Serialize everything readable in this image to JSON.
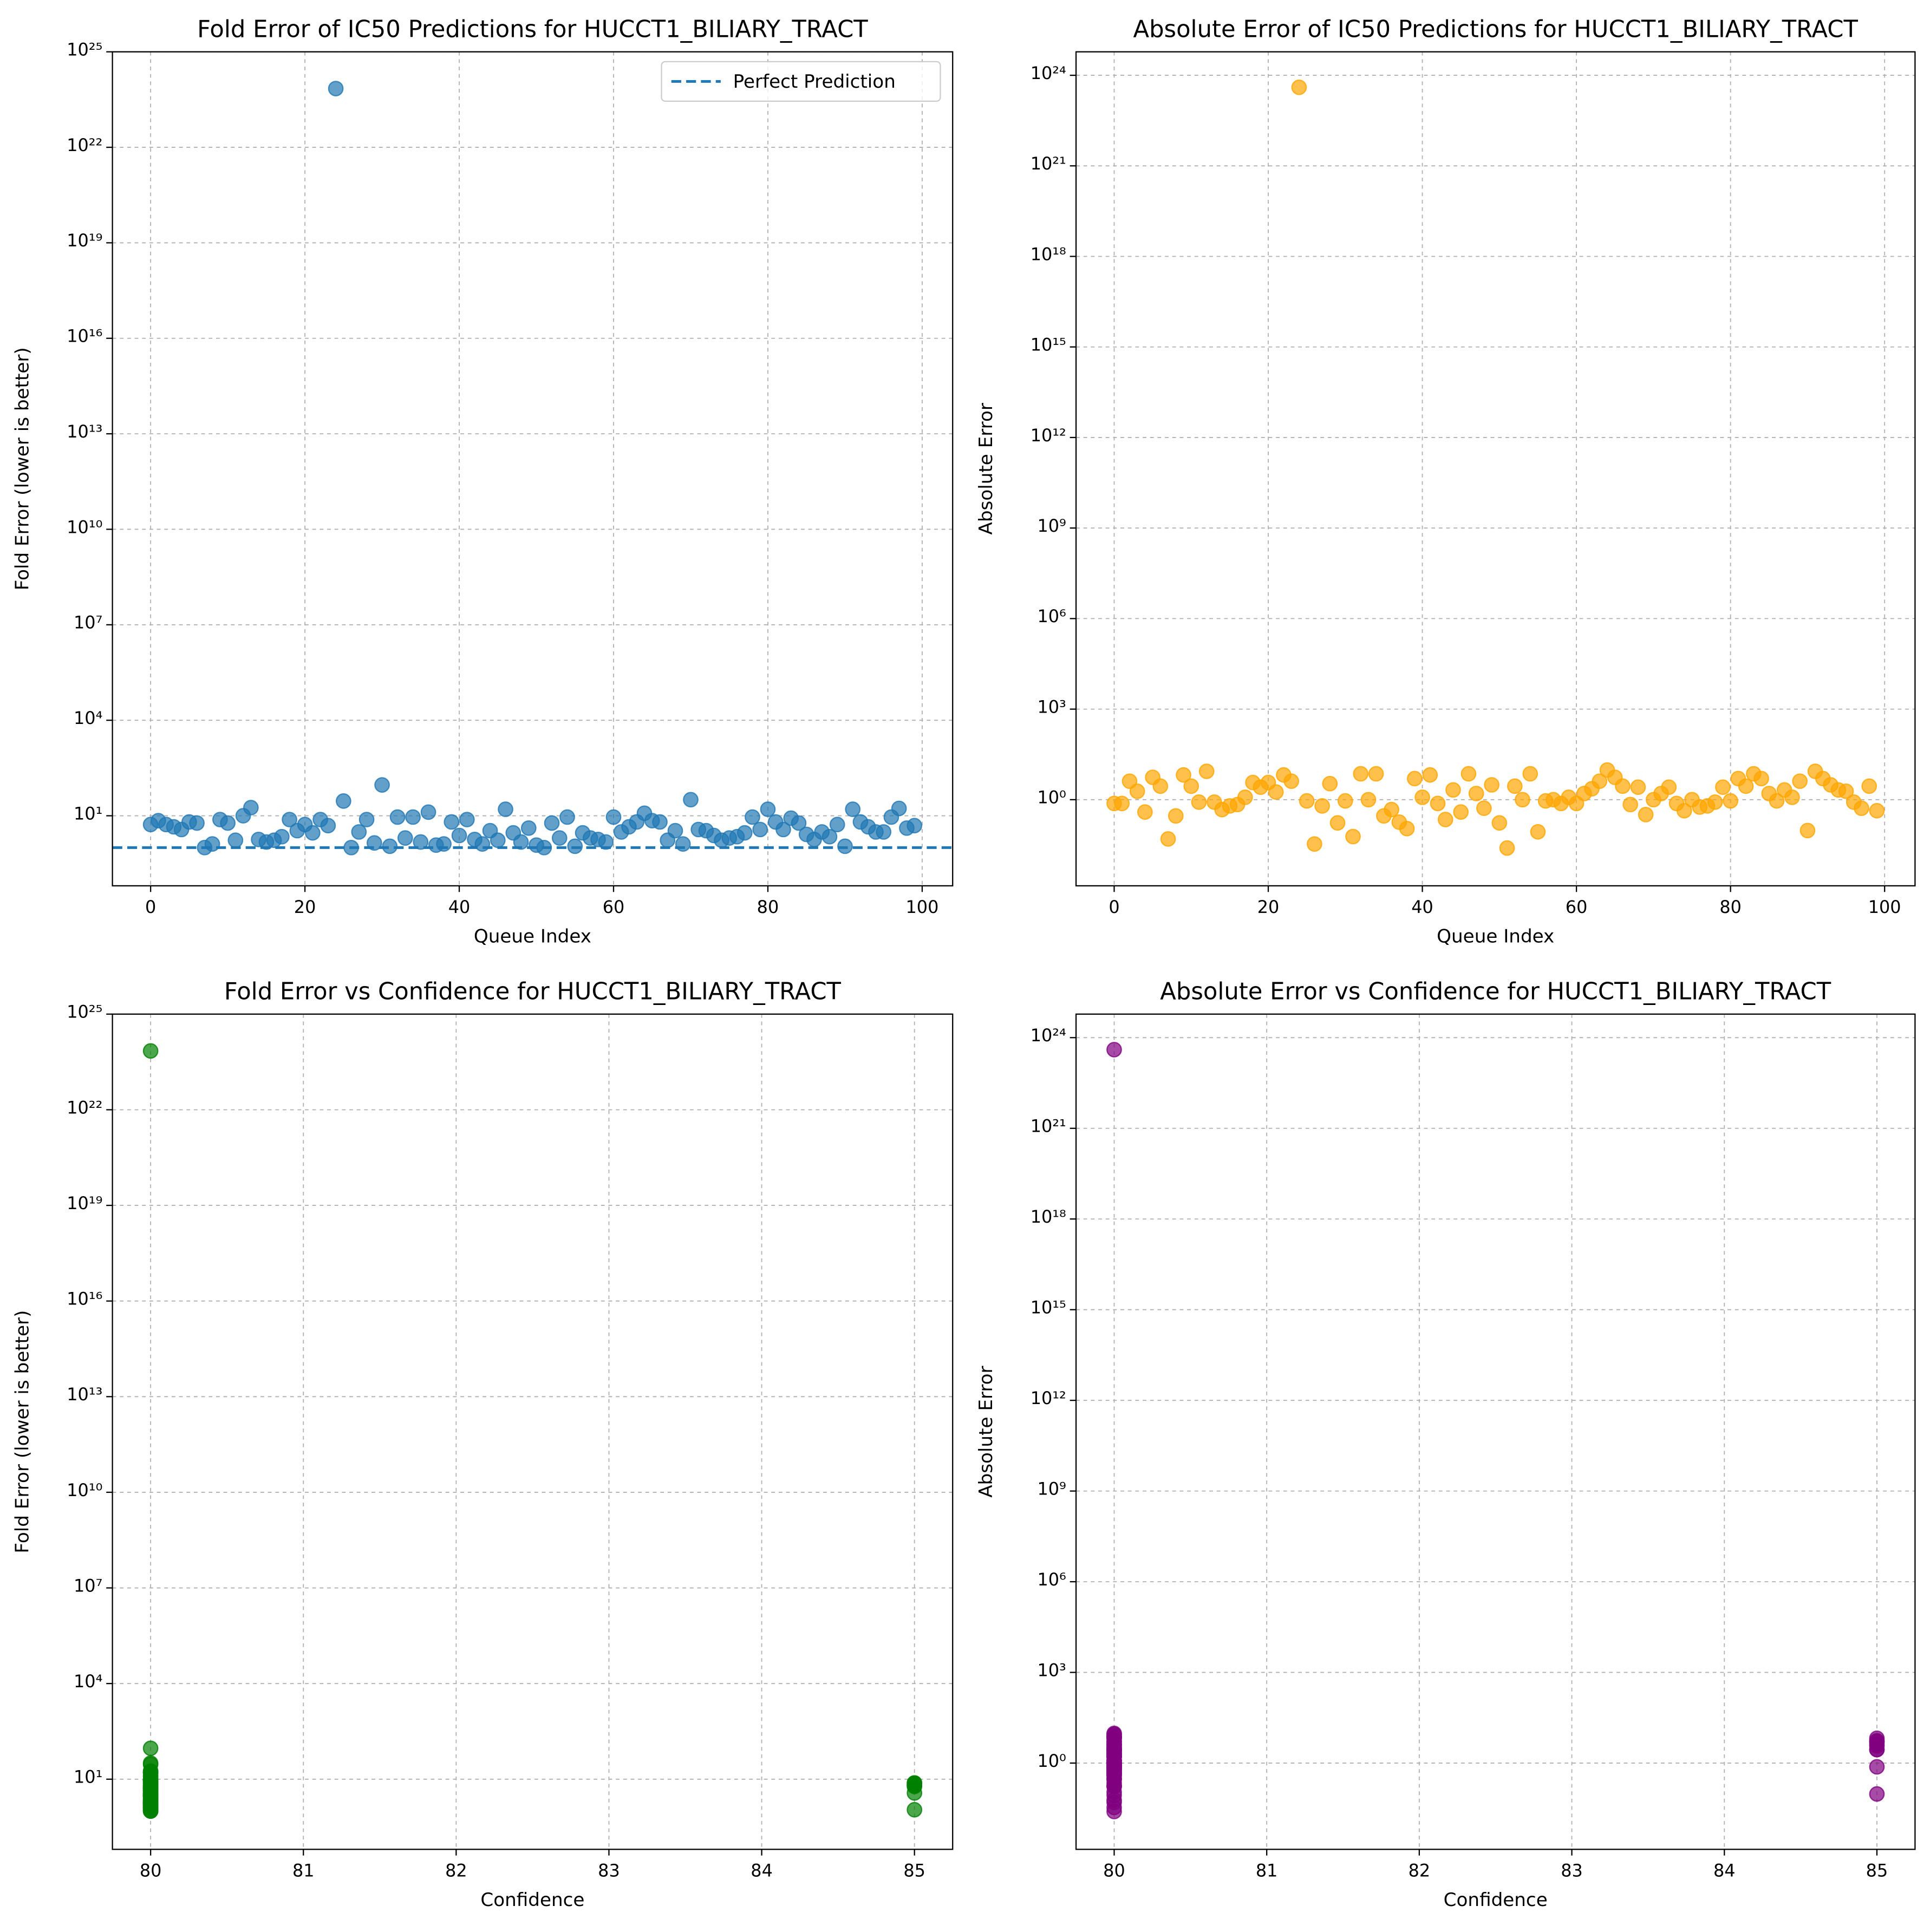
{
  "chart_data": [
    {
      "type": "scatter",
      "title": "Fold Error of IC50 Predictions for HUCCT1_BILIARY_TRACT",
      "xlabel": "Queue Index",
      "ylabel": "Fold Error (lower is better)",
      "log_y": true,
      "grid": true,
      "color": "#1f77b4",
      "x": [
        0,
        1,
        2,
        3,
        4,
        5,
        6,
        7,
        8,
        9,
        10,
        11,
        12,
        13,
        14,
        15,
        16,
        17,
        18,
        19,
        20,
        21,
        22,
        23,
        24,
        25,
        26,
        27,
        28,
        29,
        30,
        31,
        32,
        33,
        34,
        35,
        36,
        37,
        38,
        39,
        40,
        41,
        42,
        43,
        44,
        45,
        46,
        47,
        48,
        49,
        50,
        51,
        52,
        53,
        54,
        55,
        56,
        57,
        58,
        59,
        60,
        61,
        62,
        63,
        64,
        65,
        66,
        67,
        68,
        69,
        70,
        71,
        72,
        73,
        74,
        75,
        76,
        77,
        78,
        79,
        80,
        81,
        82,
        83,
        84,
        85,
        86,
        87,
        88,
        89,
        90,
        91,
        92,
        93,
        94,
        95,
        96,
        97,
        98,
        99
      ],
      "values": [
        5.3,
        7,
        5.3,
        4.5,
        3.7,
        6.4,
        5.9,
        1.0,
        1.3,
        7.6,
        5.9,
        1.7,
        10,
        18,
        1.8,
        1.5,
        1.7,
        2.2,
        7.6,
        3.4,
        5.3,
        2.9,
        7.6,
        4.9,
        7e+23,
        29,
        1.0,
        3.1,
        7.6,
        1.4,
        93,
        1.1,
        9.1,
        2,
        9.1,
        1.5,
        13,
        1.2,
        1.3,
        6.4,
        2.4,
        7.6,
        1.8,
        1.3,
        3.4,
        1.7,
        16,
        2.9,
        1.5,
        4.1,
        1.2,
        1.0,
        5.9,
        2,
        9.1,
        1.1,
        2.9,
        2,
        1.8,
        1.5,
        9.1,
        3.1,
        4.5,
        6.4,
        12,
        7,
        6.4,
        1.7,
        3.4,
        1.3,
        32,
        3.7,
        3.4,
        2.4,
        1.7,
        2,
        2.2,
        2.9,
        9.1,
        3.7,
        16,
        6.4,
        3.7,
        8.4,
        5.9,
        2.6,
        1.8,
        3.1,
        2.2,
        5.3,
        1.1,
        16,
        6.4,
        4.5,
        3.1,
        3.1,
        9.1,
        17,
        4.1,
        4.9
      ],
      "reference_line": {
        "name": "Perfect Prediction",
        "value": 1,
        "style": "dashed",
        "color": "#1f77b4"
      },
      "legend": "upper right",
      "xlim": [
        -4.95,
        103.95
      ],
      "xticks": [
        0,
        20,
        40,
        60,
        80,
        100
      ],
      "ylim": [
        0.063,
        1e+25
      ],
      "yticks": [
        {
          "value": 10,
          "label": "10¹"
        },
        {
          "value": 10000.0,
          "label": "10⁴"
        },
        {
          "value": 10000000.0,
          "label": "10⁷"
        },
        {
          "value": 10000000000.0,
          "label": "10¹⁰"
        },
        {
          "value": 10000000000000.0,
          "label": "10¹³"
        },
        {
          "value": 1e+16,
          "label": "10¹⁶"
        },
        {
          "value": 1e+19,
          "label": "10¹⁹"
        },
        {
          "value": 1e+22,
          "label": "10²²"
        },
        {
          "value": 1e+25,
          "label": "10²⁵"
        }
      ]
    },
    {
      "type": "scatter",
      "title": "Absolute Error of IC50 Predictions for HUCCT1_BILIARY_TRACT",
      "xlabel": "Queue Index",
      "ylabel": "Absolute Error",
      "log_y": true,
      "grid": true,
      "color": "#ffa500",
      "x": [
        0,
        1,
        2,
        3,
        4,
        5,
        6,
        7,
        8,
        9,
        10,
        11,
        12,
        13,
        14,
        15,
        16,
        17,
        18,
        19,
        20,
        21,
        22,
        23,
        24,
        25,
        26,
        27,
        28,
        29,
        30,
        31,
        32,
        33,
        34,
        35,
        36,
        37,
        38,
        39,
        40,
        41,
        42,
        43,
        44,
        45,
        46,
        47,
        48,
        49,
        50,
        51,
        52,
        53,
        54,
        55,
        56,
        57,
        58,
        59,
        60,
        61,
        62,
        63,
        64,
        65,
        66,
        67,
        68,
        69,
        70,
        71,
        72,
        73,
        74,
        75,
        76,
        77,
        78,
        79,
        80,
        81,
        82,
        83,
        84,
        85,
        86,
        87,
        88,
        89,
        90,
        91,
        92,
        93,
        94,
        95,
        96,
        97,
        98,
        99
      ],
      "values": [
        0.75,
        0.75,
        4.1,
        1.9,
        0.39,
        5.5,
        2.8,
        0.05,
        0.29,
        6.6,
        2.8,
        0.83,
        8.7,
        0.83,
        0.47,
        0.62,
        0.69,
        1.2,
        3.7,
        2.6,
        3.7,
        1.8,
        6.6,
        4.1,
        4e+23,
        0.91,
        0.034,
        0.62,
        3.4,
        0.17,
        0.91,
        0.06,
        7.2,
        1,
        7.2,
        0.29,
        0.47,
        0.18,
        0.11,
        5,
        1.2,
        6.6,
        0.75,
        0.22,
        2.1,
        0.39,
        7.2,
        1.6,
        0.52,
        3.1,
        0.17,
        0.025,
        2.8,
        1,
        7.2,
        0.086,
        0.91,
        1,
        0.75,
        1.2,
        0.75,
        1.6,
        2.3,
        4.1,
        9.6,
        5.5,
        2.8,
        0.69,
        2.6,
        0.32,
        1,
        1.6,
        2.6,
        0.75,
        0.43,
        1,
        0.57,
        0.62,
        0.83,
        2.6,
        0.91,
        5,
        2.8,
        7.2,
        5,
        1.6,
        0.91,
        2.1,
        1.2,
        4.1,
        0.095,
        8.7,
        5,
        3.1,
        2.1,
        1.9,
        0.83,
        0.52,
        2.8,
        0.43
      ],
      "xlim": [
        -4.95,
        103.95
      ],
      "xticks": [
        0,
        20,
        40,
        60,
        80,
        100
      ],
      "ylim": [
        0.0014,
        6e+24
      ],
      "yticks": [
        {
          "value": 1,
          "label": "10⁰"
        },
        {
          "value": 1000.0,
          "label": "10³"
        },
        {
          "value": 1000000.0,
          "label": "10⁶"
        },
        {
          "value": 1000000000.0,
          "label": "10⁹"
        },
        {
          "value": 1000000000000.0,
          "label": "10¹²"
        },
        {
          "value": 1000000000000000.0,
          "label": "10¹⁵"
        },
        {
          "value": 1e+18,
          "label": "10¹⁸"
        },
        {
          "value": 1e+21,
          "label": "10²¹"
        },
        {
          "value": 1e+24,
          "label": "10²⁴"
        }
      ]
    },
    {
      "type": "scatter",
      "title": "Fold Error vs Confidence for HUCCT1_BILIARY_TRACT",
      "xlabel": "Confidence",
      "ylabel": "Fold Error (lower is better)",
      "log_y": true,
      "grid": true,
      "color": "#008000",
      "x": [
        80,
        85,
        80,
        80,
        80,
        85,
        80,
        80,
        80,
        85,
        80,
        80,
        80,
        80,
        80,
        80,
        80,
        80,
        85,
        80,
        80,
        80,
        80,
        80,
        80,
        80,
        80,
        80,
        80,
        80,
        80,
        80,
        80,
        80,
        80,
        80,
        80,
        80,
        80,
        85,
        80,
        80,
        80,
        80,
        80,
        80,
        80,
        80,
        80,
        80,
        80,
        80,
        85,
        80,
        80,
        80,
        80,
        80,
        80,
        80,
        80,
        80,
        80,
        85,
        80,
        80,
        80,
        80,
        80,
        80,
        80,
        80,
        80,
        80,
        80,
        80,
        80,
        80,
        80,
        80,
        80,
        85,
        85,
        80,
        80,
        80,
        80,
        80,
        80,
        80,
        85,
        80,
        80,
        80,
        80,
        80,
        80,
        80,
        80,
        80
      ],
      "values": [
        5.3,
        7,
        5.3,
        4.5,
        3.7,
        6.4,
        5.9,
        1.0,
        1.3,
        7.6,
        5.9,
        1.7,
        10,
        18,
        1.8,
        1.5,
        1.7,
        2.2,
        7.6,
        3.4,
        5.3,
        2.9,
        7.6,
        4.9,
        7e+23,
        29,
        1.0,
        3.1,
        7.6,
        1.4,
        93,
        1.1,
        9.1,
        2,
        9.1,
        1.5,
        13,
        1.2,
        1.3,
        6.4,
        2.4,
        7.6,
        1.8,
        1.3,
        3.4,
        1.7,
        16,
        2.9,
        1.5,
        4.1,
        1.2,
        1.0,
        5.9,
        2,
        9.1,
        1.1,
        2.9,
        2,
        1.8,
        1.5,
        9.1,
        3.1,
        4.5,
        6.4,
        12,
        7,
        6.4,
        1.7,
        3.4,
        1.3,
        32,
        3.7,
        3.4,
        2.4,
        1.7,
        2,
        2.2,
        2.9,
        9.1,
        3.7,
        16,
        6.4,
        3.7,
        8.4,
        5.9,
        2.6,
        1.8,
        3.1,
        2.2,
        5.3,
        1.1,
        16,
        6.4,
        4.5,
        3.1,
        3.1,
        9.1,
        17,
        4.1,
        4.9
      ],
      "xlim": [
        79.75,
        85.25
      ],
      "xticks": [
        80,
        81,
        82,
        83,
        84,
        85
      ],
      "ylim": [
        0.063,
        1e+25
      ],
      "yticks": [
        {
          "value": 10,
          "label": "10¹"
        },
        {
          "value": 10000.0,
          "label": "10⁴"
        },
        {
          "value": 10000000.0,
          "label": "10⁷"
        },
        {
          "value": 10000000000.0,
          "label": "10¹⁰"
        },
        {
          "value": 10000000000000.0,
          "label": "10¹³"
        },
        {
          "value": 1e+16,
          "label": "10¹⁶"
        },
        {
          "value": 1e+19,
          "label": "10¹⁹"
        },
        {
          "value": 1e+22,
          "label": "10²²"
        },
        {
          "value": 1e+25,
          "label": "10²⁵"
        }
      ]
    },
    {
      "type": "scatter",
      "title": "Absolute Error vs Confidence for HUCCT1_BILIARY_TRACT",
      "xlabel": "Confidence",
      "ylabel": "Absolute Error",
      "log_y": true,
      "grid": true,
      "color": "#800080",
      "x": [
        80,
        85,
        80,
        80,
        80,
        85,
        80,
        80,
        80,
        85,
        80,
        80,
        80,
        80,
        80,
        80,
        80,
        80,
        85,
        80,
        80,
        80,
        80,
        80,
        80,
        80,
        80,
        80,
        80,
        80,
        80,
        80,
        80,
        80,
        80,
        80,
        80,
        80,
        80,
        85,
        80,
        80,
        80,
        80,
        80,
        80,
        80,
        80,
        80,
        80,
        80,
        80,
        85,
        80,
        80,
        80,
        80,
        80,
        80,
        80,
        80,
        80,
        80,
        85,
        80,
        80,
        80,
        80,
        80,
        80,
        80,
        80,
        80,
        80,
        80,
        80,
        80,
        80,
        80,
        80,
        80,
        85,
        85,
        80,
        80,
        80,
        80,
        80,
        80,
        80,
        85,
        80,
        80,
        80,
        80,
        80,
        80,
        80,
        80,
        80
      ],
      "values": [
        0.75,
        0.75,
        4.1,
        1.9,
        0.39,
        5.5,
        2.8,
        0.05,
        0.29,
        6.6,
        2.8,
        0.83,
        8.7,
        0.83,
        0.47,
        0.62,
        0.69,
        1.2,
        3.7,
        2.6,
        3.7,
        1.8,
        6.6,
        4.1,
        4e+23,
        0.91,
        0.034,
        0.62,
        3.4,
        0.17,
        0.91,
        0.06,
        7.2,
        1,
        7.2,
        0.29,
        0.47,
        0.18,
        0.11,
        5,
        1.2,
        6.6,
        0.75,
        0.22,
        2.1,
        0.39,
        7.2,
        1.6,
        0.52,
        3.1,
        0.17,
        0.025,
        2.8,
        1,
        7.2,
        0.086,
        0.91,
        1,
        0.75,
        1.2,
        0.75,
        1.6,
        2.3,
        4.1,
        9.6,
        5.5,
        2.8,
        0.69,
        2.6,
        0.32,
        1,
        1.6,
        2.6,
        0.75,
        0.43,
        1,
        0.57,
        0.62,
        0.83,
        2.6,
        0.91,
        5,
        2.8,
        7.2,
        5,
        1.6,
        0.91,
        2.1,
        1.2,
        4.1,
        0.095,
        8.7,
        5,
        3.1,
        2.1,
        1.9,
        0.83,
        0.52,
        2.8,
        0.43
      ],
      "xlim": [
        79.75,
        85.25
      ],
      "xticks": [
        80,
        81,
        82,
        83,
        84,
        85
      ],
      "ylim": [
        0.0014,
        6e+24
      ],
      "yticks": [
        {
          "value": 1,
          "label": "10⁰"
        },
        {
          "value": 1000.0,
          "label": "10³"
        },
        {
          "value": 1000000.0,
          "label": "10⁶"
        },
        {
          "value": 1000000000.0,
          "label": "10⁹"
        },
        {
          "value": 1000000000000.0,
          "label": "10¹²"
        },
        {
          "value": 1000000000000000.0,
          "label": "10¹⁵"
        },
        {
          "value": 1e+18,
          "label": "10¹⁸"
        },
        {
          "value": 1e+21,
          "label": "10²¹"
        },
        {
          "value": 1e+24,
          "label": "10²⁴"
        }
      ]
    }
  ]
}
